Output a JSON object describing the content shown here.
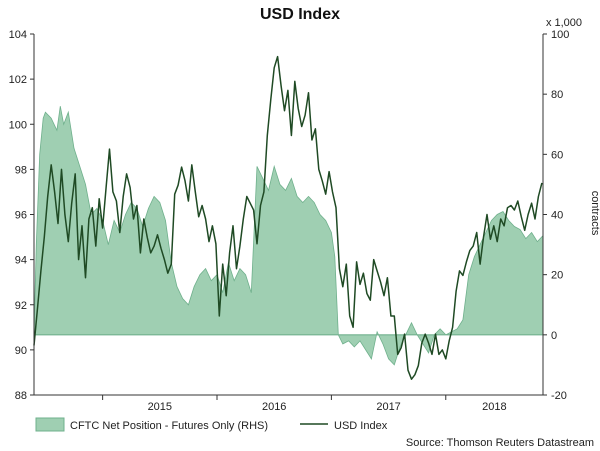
{
  "chart_data": {
    "type": "line",
    "title": "USD Index",
    "source": "Source: Thomson Reuters Datastream",
    "xlabels": [
      "2015",
      "2016",
      "2017",
      "2018"
    ],
    "left_axis": {
      "ylim": [
        88,
        104
      ],
      "ticks": [
        "88",
        "90",
        "92",
        "94",
        "96",
        "98",
        "100",
        "102",
        "104"
      ]
    },
    "right_axis": {
      "unit_label": "x 1,000",
      "label": "contracts",
      "ylim": [
        -20,
        100
      ],
      "ticks": [
        "-20",
        "0",
        "20",
        "40",
        "60",
        "80",
        "100"
      ]
    },
    "grid": false,
    "legend": {
      "position": "bottom-left",
      "items": [
        "CFTC Net Position - Futures Only (RHS)",
        "USD Index"
      ]
    },
    "colors": {
      "area_fill": "#9fcfb2",
      "area_stroke": "#6fb08c",
      "line": "#1f4a24",
      "axis": "#333333"
    },
    "x_range": [
      2014.4,
      2018.85
    ],
    "series": [
      {
        "name": "CFTC Net Position - Futures Only (RHS)",
        "axis": "right",
        "type": "area",
        "x": [
          2014.4,
          2014.42,
          2014.45,
          2014.48,
          2014.5,
          2014.55,
          2014.6,
          2014.63,
          2014.66,
          2014.7,
          2014.75,
          2014.8,
          2014.85,
          2014.9,
          2014.95,
          2015.0,
          2015.05,
          2015.1,
          2015.15,
          2015.2,
          2015.25,
          2015.3,
          2015.35,
          2015.4,
          2015.45,
          2015.5,
          2015.55,
          2015.6,
          2015.65,
          2015.7,
          2015.75,
          2015.8,
          2015.85,
          2015.9,
          2015.95,
          2016.0,
          2016.05,
          2016.1,
          2016.15,
          2016.2,
          2016.25,
          2016.3,
          2016.35,
          2016.4,
          2016.45,
          2016.5,
          2016.55,
          2016.6,
          2016.65,
          2016.7,
          2016.75,
          2016.8,
          2016.85,
          2016.9,
          2016.95,
          2017.0,
          2017.03,
          2017.06,
          2017.1,
          2017.15,
          2017.2,
          2017.25,
          2017.3,
          2017.35,
          2017.4,
          2017.45,
          2017.5,
          2017.55,
          2017.6,
          2017.65,
          2017.7,
          2017.75,
          2017.8,
          2017.85,
          2017.9,
          2017.95,
          2018.0,
          2018.05,
          2018.1,
          2018.15,
          2018.2,
          2018.25,
          2018.3,
          2018.35,
          2018.4,
          2018.45,
          2018.5,
          2018.55,
          2018.6,
          2018.65,
          2018.7,
          2018.75,
          2018.8,
          2018.85
        ],
        "y": [
          0,
          30,
          60,
          72,
          74,
          72,
          68,
          76,
          70,
          74,
          62,
          56,
          50,
          40,
          42,
          38,
          30,
          38,
          34,
          40,
          44,
          42,
          36,
          42,
          46,
          44,
          38,
          24,
          16,
          12,
          10,
          16,
          20,
          22,
          18,
          20,
          14,
          24,
          18,
          22,
          20,
          14,
          56,
          52,
          48,
          56,
          50,
          48,
          52,
          46,
          44,
          46,
          44,
          40,
          38,
          34,
          26,
          0,
          -3,
          -2,
          -4,
          -2,
          -5,
          -8,
          1,
          -3,
          -8,
          -10,
          -4,
          0,
          4,
          0,
          -3,
          -6,
          0,
          2,
          0,
          1,
          2,
          5,
          20,
          26,
          30,
          34,
          38,
          40,
          41,
          38,
          36,
          35,
          32,
          34,
          31,
          33
        ]
      },
      {
        "name": "USD Index",
        "axis": "left",
        "type": "line",
        "x": [
          2014.4,
          2014.43,
          2014.46,
          2014.49,
          2014.52,
          2014.55,
          2014.58,
          2014.61,
          2014.64,
          2014.67,
          2014.7,
          2014.73,
          2014.76,
          2014.79,
          2014.82,
          2014.85,
          2014.88,
          2014.91,
          2014.94,
          2014.97,
          2015.0,
          2015.03,
          2015.06,
          2015.09,
          2015.12,
          2015.15,
          2015.18,
          2015.21,
          2015.24,
          2015.27,
          2015.3,
          2015.33,
          2015.36,
          2015.39,
          2015.42,
          2015.45,
          2015.48,
          2015.51,
          2015.54,
          2015.57,
          2015.6,
          2015.63,
          2015.66,
          2015.69,
          2015.72,
          2015.75,
          2015.78,
          2015.81,
          2015.84,
          2015.87,
          2015.9,
          2015.93,
          2015.96,
          2015.99,
          2016.02,
          2016.05,
          2016.08,
          2016.11,
          2016.14,
          2016.17,
          2016.2,
          2016.23,
          2016.26,
          2016.29,
          2016.32,
          2016.35,
          2016.38,
          2016.41,
          2016.44,
          2016.47,
          2016.5,
          2016.53,
          2016.56,
          2016.59,
          2016.62,
          2016.65,
          2016.68,
          2016.71,
          2016.74,
          2016.77,
          2016.8,
          2016.83,
          2016.86,
          2016.89,
          2016.92,
          2016.95,
          2016.98,
          2017.01,
          2017.04,
          2017.07,
          2017.1,
          2017.13,
          2017.16,
          2017.19,
          2017.22,
          2017.25,
          2017.28,
          2017.31,
          2017.34,
          2017.37,
          2017.4,
          2017.43,
          2017.46,
          2017.49,
          2017.52,
          2017.55,
          2017.58,
          2017.61,
          2017.64,
          2017.67,
          2017.7,
          2017.73,
          2017.76,
          2017.79,
          2017.82,
          2017.85,
          2017.88,
          2017.91,
          2017.94,
          2017.97,
          2018.0,
          2018.03,
          2018.06,
          2018.09,
          2018.12,
          2018.15,
          2018.18,
          2018.21,
          2018.24,
          2018.27,
          2018.3,
          2018.33,
          2018.36,
          2018.39,
          2018.42,
          2018.45,
          2018.48,
          2018.51,
          2018.54,
          2018.57,
          2018.6,
          2018.63,
          2018.66,
          2018.69,
          2018.72,
          2018.75,
          2018.78,
          2018.81,
          2018.84
        ],
        "y": [
          90.2,
          91.8,
          93.5,
          95.0,
          96.8,
          98.2,
          97.0,
          95.6,
          98.0,
          96.0,
          94.8,
          96.5,
          97.8,
          94.0,
          95.5,
          93.2,
          95.8,
          96.3,
          94.6,
          96.7,
          95.4,
          97.2,
          98.9,
          97.0,
          96.6,
          95.2,
          96.8,
          97.8,
          97.2,
          95.8,
          96.4,
          94.3,
          95.8,
          95.0,
          94.3,
          94.6,
          95.1,
          94.5,
          94.0,
          93.4,
          93.8,
          96.9,
          97.3,
          98.1,
          97.5,
          96.6,
          98.2,
          97.0,
          95.9,
          96.4,
          95.8,
          94.8,
          95.5,
          94.7,
          91.5,
          93.8,
          92.4,
          94.3,
          95.5,
          93.6,
          94.6,
          95.8,
          96.8,
          96.5,
          96.2,
          94.7,
          96.4,
          97.0,
          99.5,
          101.1,
          102.5,
          103.0,
          101.7,
          100.6,
          101.5,
          99.5,
          101.9,
          100.7,
          99.9,
          100.4,
          101.4,
          99.3,
          99.8,
          98.0,
          97.5,
          96.9,
          97.9,
          97.0,
          96.3,
          93.6,
          92.8,
          93.8,
          91.5,
          91.0,
          93.9,
          92.9,
          93.4,
          92.5,
          92.2,
          94.0,
          93.5,
          93.0,
          92.4,
          93.2,
          91.5,
          91.5,
          89.8,
          90.1,
          90.7,
          89.1,
          88.7,
          88.9,
          89.3,
          90.3,
          90.7,
          90.3,
          89.8,
          90.7,
          89.8,
          90.0,
          89.6,
          90.4,
          91.0,
          92.6,
          93.5,
          93.3,
          93.9,
          94.4,
          94.6,
          95.2,
          93.8,
          95.0,
          96.0,
          94.9,
          95.5,
          94.8,
          95.8,
          95.5,
          96.3,
          96.4,
          96.2,
          96.6,
          95.9,
          95.3,
          96.0,
          96.5,
          95.8,
          96.8,
          97.4
        ]
      }
    ]
  }
}
